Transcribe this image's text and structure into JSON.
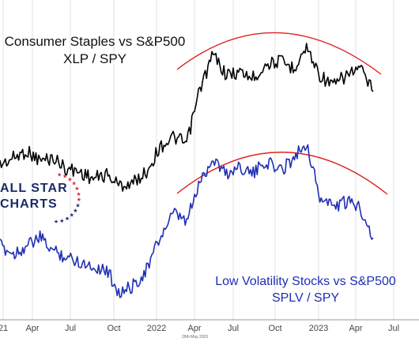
{
  "titles": {
    "top_line1": "Consumer Staples vs S&P500",
    "top_line2": "XLP / SPY",
    "bottom_line1": "Low Volatility Stocks vs S&P500",
    "bottom_line2": "SPLV / SPY"
  },
  "logo": {
    "line1": "ALL STAR",
    "line2": "CHARTS"
  },
  "caption": "26th May 2023",
  "colors": {
    "xlp": "#000000",
    "splv": "#1f2fb5",
    "arc": "#e02020",
    "grid": "#e2e2e2",
    "logo": "#1b2a6b",
    "logo_stars": "#d62b36"
  },
  "chart_data": {
    "type": "line",
    "x_ticks": [
      "21",
      "Apr",
      "Jul",
      "Oct",
      "2022",
      "Apr",
      "Jul",
      "Oct",
      "2023",
      "Apr",
      "Jul"
    ],
    "series": [
      {
        "name": "XLP / SPY",
        "x": [
          "2021-01",
          "2021-02",
          "2021-03",
          "2021-04",
          "2021-05",
          "2021-06",
          "2021-07",
          "2021-08",
          "2021-09",
          "2021-10",
          "2021-11",
          "2021-12",
          "2022-01",
          "2022-02",
          "2022-03",
          "2022-04",
          "2022-05",
          "2022-06",
          "2022-07",
          "2022-08",
          "2022-09",
          "2022-10",
          "2022-11",
          "2022-12",
          "2023-01",
          "2023-02",
          "2023-03",
          "2023-04",
          "2023-05"
        ],
        "values": [
          0.15,
          0.2,
          0.25,
          0.18,
          0.2,
          0.12,
          0.1,
          0.05,
          0.08,
          0.0,
          0.02,
          0.1,
          0.28,
          0.35,
          0.3,
          0.7,
          0.95,
          0.8,
          0.82,
          0.78,
          0.88,
          0.9,
          0.85,
          1.0,
          0.8,
          0.72,
          0.8,
          0.85,
          0.68
        ]
      },
      {
        "name": "SPLV / SPY",
        "x": [
          "2021-01",
          "2021-02",
          "2021-03",
          "2021-04",
          "2021-05",
          "2021-06",
          "2021-07",
          "2021-08",
          "2021-09",
          "2021-10",
          "2021-11",
          "2021-12",
          "2022-01",
          "2022-02",
          "2022-03",
          "2022-04",
          "2022-05",
          "2022-06",
          "2022-07",
          "2022-08",
          "2022-09",
          "2022-10",
          "2022-11",
          "2022-12",
          "2023-01",
          "2023-02",
          "2023-03",
          "2023-04",
          "2023-05"
        ],
        "values": [
          0.35,
          0.3,
          0.35,
          0.4,
          0.32,
          0.28,
          0.25,
          0.22,
          0.2,
          0.05,
          0.1,
          0.2,
          0.4,
          0.55,
          0.5,
          0.75,
          0.9,
          0.8,
          0.85,
          0.8,
          0.88,
          0.82,
          0.9,
          1.0,
          0.65,
          0.6,
          0.62,
          0.6,
          0.4
        ]
      }
    ],
    "annotations": [
      "Consumer Staples vs S&P500",
      "XLP / SPY",
      "Low Volatility Stocks vs S&P500",
      "SPLV / SPY"
    ],
    "grid": true,
    "arcs": 2
  }
}
